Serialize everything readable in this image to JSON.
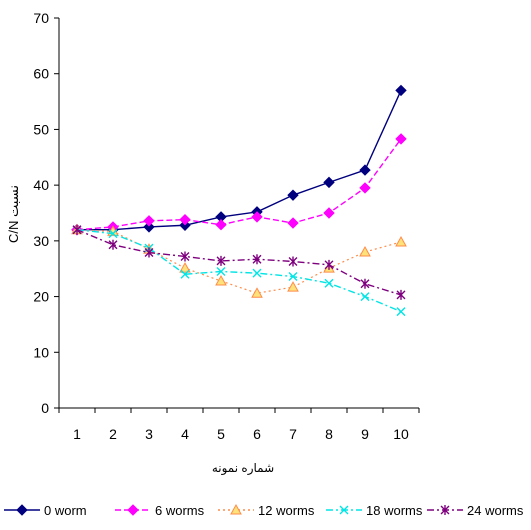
{
  "chart_data": {
    "type": "line",
    "categories": [
      "1",
      "2",
      "3",
      "4",
      "5",
      "6",
      "7",
      "8",
      "9",
      "10"
    ],
    "ylim": [
      0,
      70
    ],
    "yticks": [
      0,
      10,
      20,
      30,
      40,
      50,
      60,
      70
    ],
    "xlabel": "شماره نمونه",
    "ylabel": "C/N نسبت",
    "legend_position": "bottom",
    "grid": false,
    "series": [
      {
        "name": "0 worm",
        "color": "#00007F",
        "marker": "diamond",
        "dash": "solid",
        "values": [
          32.0,
          32.0,
          32.5,
          32.8,
          34.3,
          35.2,
          38.2,
          40.5,
          42.7,
          57.0
        ]
      },
      {
        "name": "6 worms",
        "color": "#FF00FF",
        "marker": "diamond",
        "dash": "dashed",
        "values": [
          32.0,
          32.5,
          33.6,
          33.8,
          32.9,
          34.3,
          33.2,
          35.0,
          39.5,
          48.3
        ]
      },
      {
        "name": "12 worms",
        "color": "#FF8C4A",
        "marker": "triangle",
        "dash": "dotted",
        "values": [
          32.0,
          31.7,
          28.5,
          25.1,
          22.8,
          20.6,
          21.7,
          25.1,
          28.0,
          29.8
        ]
      },
      {
        "name": "18 worms",
        "color": "#00E5E5",
        "marker": "x",
        "dash": "dashdot",
        "values": [
          32.0,
          31.3,
          28.7,
          24.0,
          24.5,
          24.2,
          23.6,
          22.4,
          20.0,
          17.3
        ]
      },
      {
        "name": "24 worms",
        "color": "#7F007F",
        "marker": "star",
        "dash": "dashdot",
        "values": [
          32.0,
          29.3,
          27.9,
          27.2,
          26.4,
          26.7,
          26.3,
          25.7,
          22.3,
          20.3
        ]
      }
    ]
  }
}
